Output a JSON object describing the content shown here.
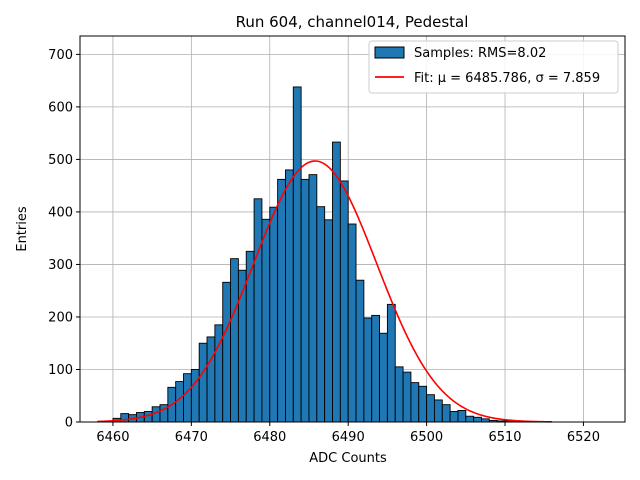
{
  "chart_data": {
    "type": "bar",
    "title": "Run 604, channel014, Pedestal",
    "xlabel": "ADC Counts",
    "ylabel": "Entries",
    "xlim": [
      6455.8,
      6525.3
    ],
    "ylim": [
      0,
      735
    ],
    "xticks": [
      6460,
      6470,
      6480,
      6490,
      6500,
      6510,
      6520
    ],
    "yticks": [
      0,
      100,
      200,
      300,
      400,
      500,
      600,
      700
    ],
    "grid": true,
    "legend_position": "top-right",
    "bin_start": 6458,
    "bin_width": 1,
    "counts": [
      0,
      2,
      7,
      16,
      14,
      18,
      20,
      29,
      33,
      66,
      77,
      92,
      100,
      150,
      162,
      185,
      266,
      311,
      289,
      325,
      425,
      386,
      409,
      462,
      480,
      638,
      462,
      471,
      410,
      385,
      533,
      459,
      377,
      270,
      198,
      203,
      169,
      224,
      105,
      95,
      75,
      68,
      52,
      42,
      33,
      20,
      22,
      11,
      9,
      6,
      3,
      2,
      2,
      1,
      0,
      0,
      0,
      0
    ],
    "series": [
      {
        "name": "Samples: RMS=8.02",
        "kind": "histogram",
        "color": "#1f77b4",
        "edgecolor": "#000000"
      },
      {
        "name": "Fit: μ = 6485.786, σ = 7.859",
        "kind": "gaussian-fit",
        "color": "#ff0000",
        "amplitude": 497,
        "mu": 6485.786,
        "sigma": 7.859,
        "x_range": [
          6458,
          6516
        ]
      }
    ]
  }
}
